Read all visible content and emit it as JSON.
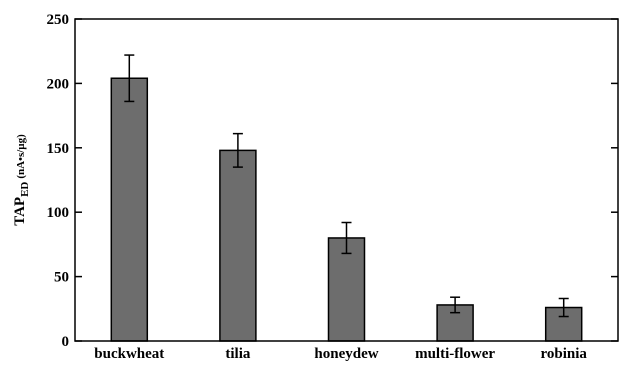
{
  "chart_data": {
    "type": "bar",
    "categories": [
      "buckwheat",
      "tilia",
      "honeydew",
      "multi-flower",
      "robinia"
    ],
    "values": [
      204,
      148,
      80,
      28,
      26
    ],
    "errors": [
      18,
      13,
      12,
      6,
      7
    ],
    "ylabel": {
      "main": "TAP",
      "sub": "ED",
      "unit": "(nA•s/µg)"
    },
    "ylim": [
      0,
      250
    ],
    "yticks": [
      0,
      50,
      100,
      150,
      200,
      250
    ],
    "grid": false,
    "colors": {
      "bar": "#6d6d6d",
      "axis": "#000000"
    }
  }
}
